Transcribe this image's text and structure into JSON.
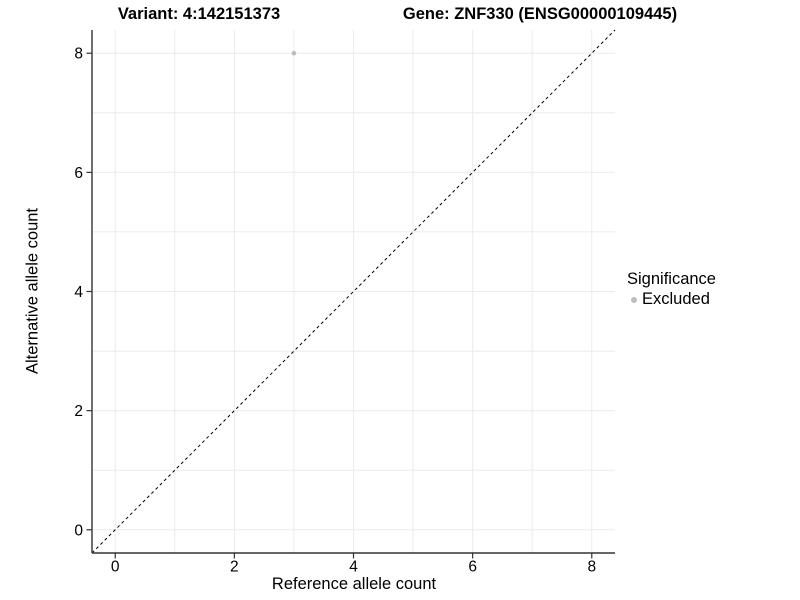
{
  "figure": {
    "title_left": "Variant: 4:142151373",
    "title_right": "Gene: ZNF330 (ENSG00000109445)"
  },
  "chart_data": {
    "type": "scatter",
    "title": "Variant: 4:142151373        Gene: ZNF330 (ENSG00000109445)",
    "xlabel": "Reference allele count",
    "ylabel": "Alternative allele count",
    "xlim": [
      -0.39,
      8.39
    ],
    "ylim": [
      -0.39,
      8.39
    ],
    "x_ticks": [
      0,
      2,
      4,
      6,
      8
    ],
    "y_ticks": [
      0,
      2,
      4,
      6,
      8
    ],
    "x_grid": [
      0,
      1,
      2,
      3,
      4,
      5,
      6,
      7,
      8
    ],
    "y_grid": [
      0,
      1,
      2,
      3,
      4,
      5,
      6,
      7,
      8
    ],
    "grid": true,
    "series": [
      {
        "name": "Excluded",
        "color": "#bdbdbd",
        "marker": "circle",
        "points": [
          [
            3,
            8
          ]
        ]
      }
    ],
    "reference_line": {
      "kind": "identity",
      "from": [
        -0.39,
        -0.39
      ],
      "to": [
        8.39,
        8.39
      ],
      "style": "dashed",
      "dash": "3 3",
      "color": "#000000"
    },
    "legend": {
      "position": "right",
      "title": "Significance",
      "entries": [
        {
          "label": "Excluded",
          "color": "#bdbdbd"
        }
      ]
    }
  },
  "colors": {
    "background": "#ffffff",
    "grid": "#ebebeb",
    "axis": "#333333",
    "tick_label": "#000000",
    "reference_line": "#000000",
    "point": "#bdbdbd"
  }
}
